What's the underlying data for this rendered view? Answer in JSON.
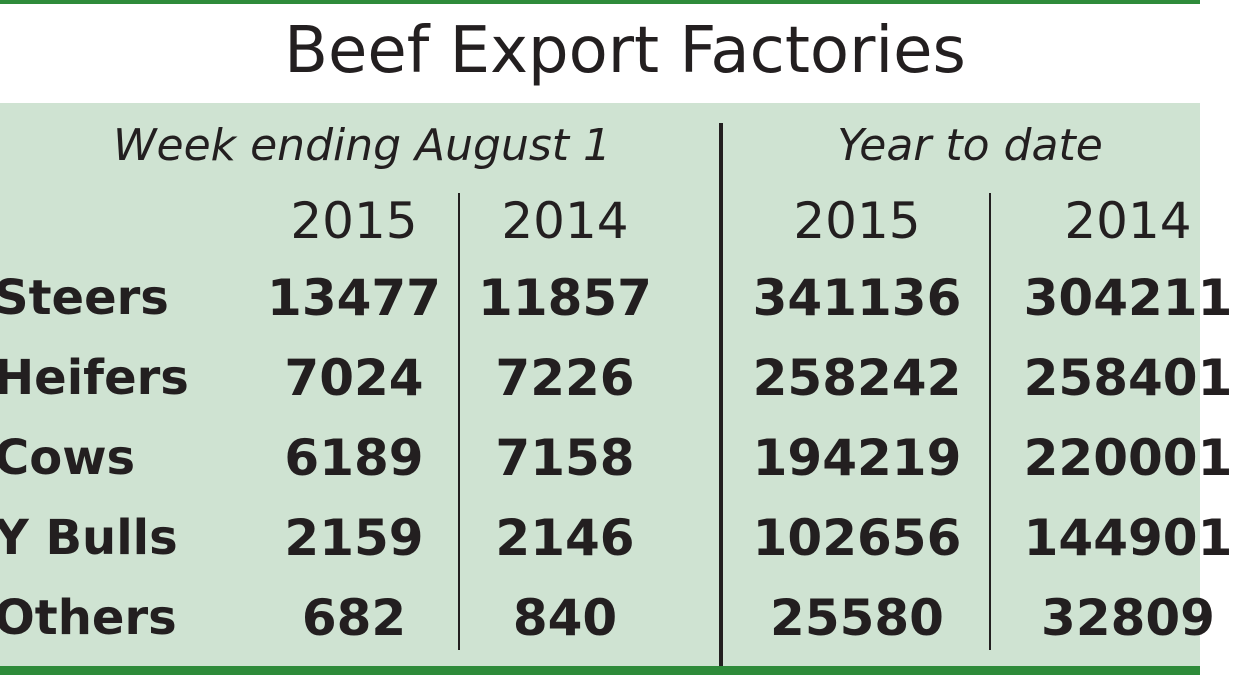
{
  "title": "Beef Export Factories",
  "colors": {
    "panel": "#cfe3d2",
    "border": "#2e8b3a",
    "text": "#231f20"
  },
  "groups": [
    {
      "label": "Week ending August 1",
      "years": [
        "2015",
        "2014"
      ]
    },
    {
      "label": "Year to date",
      "years": [
        "2015",
        "2014"
      ]
    }
  ],
  "rows": [
    {
      "label": "Steers",
      "values": [
        "13477",
        "11857",
        "341136",
        "304211"
      ]
    },
    {
      "label": "Heifers",
      "values": [
        "7024",
        "7226",
        "258242",
        "258401"
      ]
    },
    {
      "label": "Cows",
      "values": [
        "6189",
        "7158",
        "194219",
        "220001"
      ]
    },
    {
      "label": "Y Bulls",
      "values": [
        "2159",
        "2146",
        "102656",
        "144901"
      ]
    },
    {
      "label": "Others",
      "values": [
        "682",
        "840",
        "25580",
        "32809"
      ]
    }
  ],
  "chart_data": {
    "type": "table",
    "title": "Beef Export Factories",
    "column_groups": [
      "Week ending August 1",
      "Year to date"
    ],
    "columns": [
      "2015",
      "2014",
      "2015",
      "2014"
    ],
    "row_labels": [
      "Steers",
      "Heifers",
      "Cows",
      "Y Bulls",
      "Others"
    ],
    "values": [
      [
        13477,
        11857,
        341136,
        304211
      ],
      [
        7024,
        7226,
        258242,
        258401
      ],
      [
        6189,
        7158,
        194219,
        220001
      ],
      [
        2159,
        2146,
        102656,
        144901
      ],
      [
        682,
        840,
        25580,
        32809
      ]
    ]
  }
}
